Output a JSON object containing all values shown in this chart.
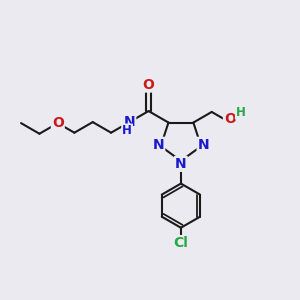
{
  "bg_color": "#eaeaf0",
  "bond_color": "#1a1a1a",
  "bond_width": 1.5,
  "colors": {
    "N": "#1a1acc",
    "O": "#cc1a1a",
    "Cl": "#22aa44",
    "H_color": "#22aa44",
    "C": "#1a1a1a"
  },
  "font_size_atom": 10,
  "font_size_small": 8.5,
  "xlim": [
    0,
    10
  ],
  "ylim": [
    0,
    10
  ]
}
